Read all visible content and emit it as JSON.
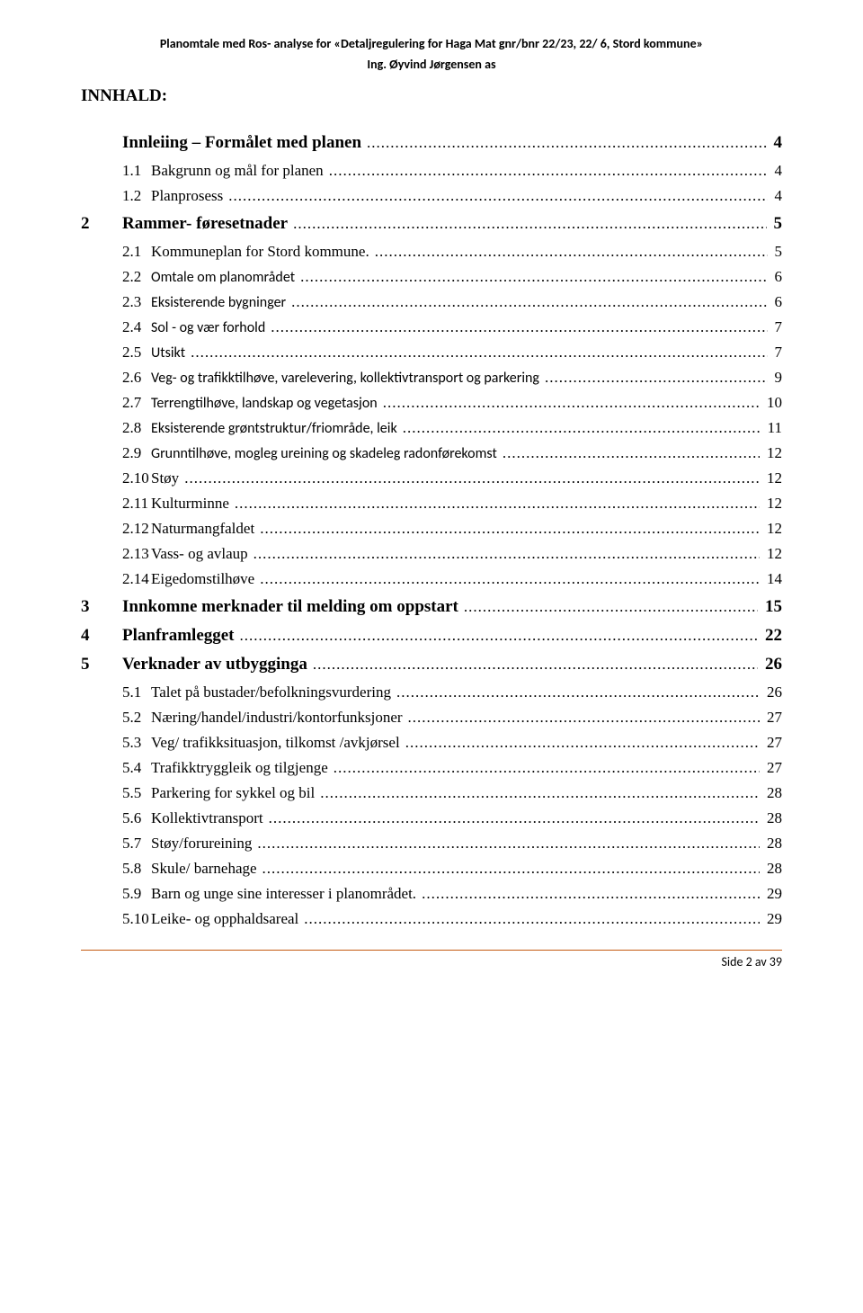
{
  "header": {
    "title": "Planomtale med Ros- analyse for «Detaljregulering for Haga Mat gnr/bnr 22/23, 22/ 6, Stord kommune»",
    "subtitle": "Ing. Øyvind Jørgensen as"
  },
  "section_heading": "INNHALD:",
  "toc": [
    {
      "level": 1,
      "num": "",
      "title": "Innleiing – Formålet med planen",
      "page": "4"
    },
    {
      "level": 2,
      "num": "1.1",
      "title": "Bakgrunn og mål for planen",
      "page": "4"
    },
    {
      "level": 2,
      "num": "1.2",
      "title": "Planprosess",
      "page": "4"
    },
    {
      "level": 1,
      "num": "2",
      "title": "Rammer- føresetnader",
      "page": "5"
    },
    {
      "level": 2,
      "num": "2.1",
      "title": "Kommuneplan for Stord kommune.",
      "page": "5"
    },
    {
      "level": 2,
      "num": "2.2",
      "title": "Omtale om planområdet",
      "page": "6",
      "sans": true
    },
    {
      "level": 2,
      "num": "2.3",
      "title": "Eksisterende bygninger",
      "page": "6",
      "sans": true
    },
    {
      "level": 2,
      "num": "2.4",
      "title": "Sol - og vær forhold",
      "page": "7",
      "sans": true
    },
    {
      "level": 2,
      "num": "2.5",
      "title": "Utsikt",
      "page": "7",
      "sans": true
    },
    {
      "level": 2,
      "num": "2.6",
      "title": "Veg- og trafikktilhøve, varelevering, kollektivtransport og parkering",
      "page": "9",
      "sans": true
    },
    {
      "level": 2,
      "num": "2.7",
      "title": "Terrengtilhøve, landskap og vegetasjon",
      "page": "10",
      "sans": true
    },
    {
      "level": 2,
      "num": "2.8",
      "title": "Eksisterende grøntstruktur/friområde, leik",
      "page": "11",
      "sans": true
    },
    {
      "level": 2,
      "num": "2.9",
      "title": "Grunntilhøve, mogleg ureining og skadeleg radonførekomst",
      "page": "12",
      "sans": true
    },
    {
      "level": 2,
      "num": "2.10",
      "title": "Støy",
      "page": "12"
    },
    {
      "level": 2,
      "num": "2.11",
      "title": "Kulturminne",
      "page": "12"
    },
    {
      "level": 2,
      "num": "2.12",
      "title": "Naturmangfaldet",
      "page": "12"
    },
    {
      "level": 2,
      "num": "2.13",
      "title": "Vass- og avlaup",
      "page": "12"
    },
    {
      "level": 2,
      "num": "2.14",
      "title": "Eigedomstilhøve",
      "page": "14"
    },
    {
      "level": 1,
      "num": "3",
      "title": "Innkomne merknader til melding om oppstart",
      "page": "15"
    },
    {
      "level": 1,
      "num": "4",
      "title": "Planframlegget",
      "page": "22"
    },
    {
      "level": 1,
      "num": "5",
      "title": "Verknader av utbygginga",
      "page": "26"
    },
    {
      "level": 2,
      "num": "5.1",
      "title": "Talet på bustader/befolkningsvurdering",
      "page": "26"
    },
    {
      "level": 2,
      "num": "5.2",
      "title": "Næring/handel/industri/kontorfunksjoner",
      "page": "27"
    },
    {
      "level": 2,
      "num": "5.3",
      "title": "Veg/ trafikksituasjon, tilkomst /avkjørsel",
      "page": "27"
    },
    {
      "level": 2,
      "num": "5.4",
      "title": "Trafikktryggleik og tilgjenge",
      "page": "27"
    },
    {
      "level": 2,
      "num": "5.5",
      "title": "Parkering for sykkel og bil",
      "page": "28"
    },
    {
      "level": 2,
      "num": "5.6",
      "title": "Kollektivtransport",
      "page": "28"
    },
    {
      "level": 2,
      "num": "5.7",
      "title": "Støy/forureining",
      "page": "28"
    },
    {
      "level": 2,
      "num": "5.8",
      "title": "Skule/ barnehage",
      "page": "28"
    },
    {
      "level": 2,
      "num": "5.9",
      "title": "Barn og unge sine interesser i planområdet.",
      "page": "29"
    },
    {
      "level": 2,
      "num": "5.10",
      "title": "Leike- og opphaldsareal",
      "page": "29"
    }
  ],
  "footer": {
    "text": "Side 2 av 39",
    "rule_color": "#c55a11"
  }
}
